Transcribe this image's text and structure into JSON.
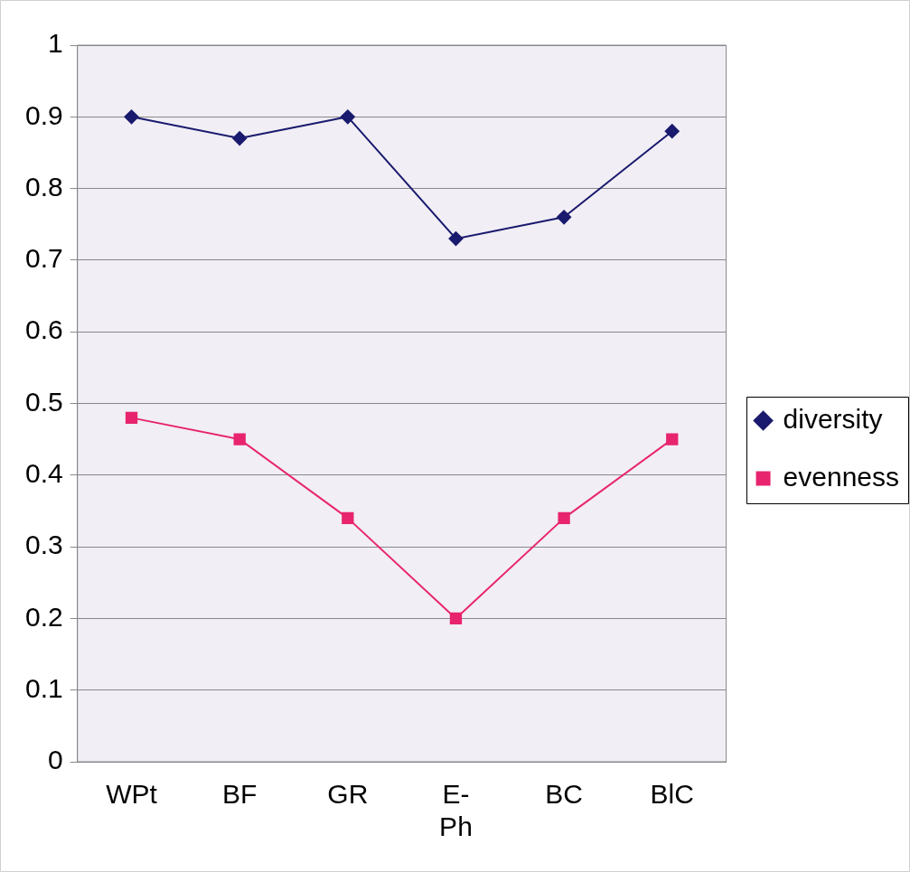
{
  "chart_data": {
    "type": "line",
    "categories": [
      "WPt",
      "BF",
      "GR",
      "E-Ph",
      "BC",
      "BlC"
    ],
    "series": [
      {
        "name": "diversity",
        "color": "#1a1a6e",
        "marker": "diamond",
        "values": [
          0.9,
          0.87,
          0.9,
          0.73,
          0.76,
          0.88
        ]
      },
      {
        "name": "evenness",
        "color": "#e8246e",
        "marker": "square",
        "values": [
          0.48,
          0.45,
          0.34,
          0.2,
          0.34,
          0.45
        ]
      }
    ],
    "ylim": [
      0,
      1
    ],
    "yticks": [
      0,
      0.1,
      0.2,
      0.3,
      0.4,
      0.5,
      0.6,
      0.7,
      0.8,
      0.9,
      1
    ],
    "grid": "y",
    "legend": "right"
  }
}
